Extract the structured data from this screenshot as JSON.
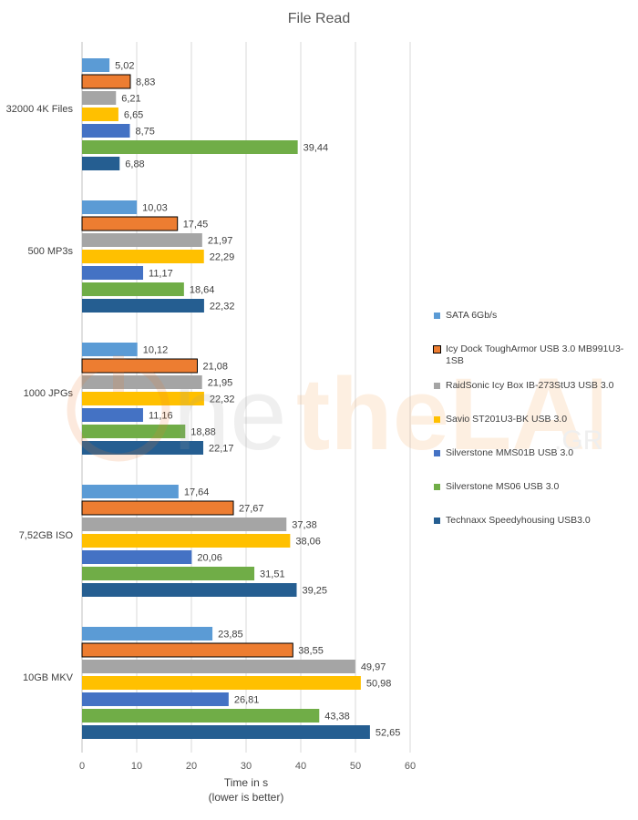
{
  "chart_data": {
    "type": "bar",
    "orientation": "horizontal",
    "title": "File Read",
    "xlabel": [
      "Time in s",
      "(lower is better)"
    ],
    "ylabel": "",
    "xlim": [
      0,
      60
    ],
    "xticks": [
      0,
      10,
      20,
      30,
      40,
      50,
      60
    ],
    "grid": true,
    "legend_position": "right",
    "categories": [
      "32000 4K Files",
      "500 MP3s",
      "1000 JPGs",
      "7,52GB ISO",
      "10GB MKV"
    ],
    "series": [
      {
        "name": "SATA 6Gb/s",
        "color": "#5B9BD5",
        "outline": false,
        "values": [
          5.02,
          10.03,
          10.12,
          17.64,
          23.85
        ],
        "labels": [
          "5,02",
          "10,03",
          "10,12",
          "17,64",
          "23,85"
        ]
      },
      {
        "name": "Icy Dock ToughArmor USB 3.0 MB991U3-1SB",
        "color": "#ED7D31",
        "outline": true,
        "values": [
          8.83,
          17.45,
          21.08,
          27.67,
          38.55
        ],
        "labels": [
          "8,83",
          "17,45",
          "21,08",
          "27,67",
          "38,55"
        ]
      },
      {
        "name": "RaidSonic Icy Box IB-273StU3 USB 3.0",
        "color": "#A5A5A5",
        "outline": false,
        "values": [
          6.21,
          21.97,
          21.95,
          37.38,
          49.97
        ],
        "labels": [
          "6,21",
          "21,97",
          "21,95",
          "37,38",
          "49,97"
        ]
      },
      {
        "name": "Savio ST201U3-BK USB 3.0",
        "color": "#FFC000",
        "outline": false,
        "values": [
          6.65,
          22.29,
          22.32,
          38.06,
          50.98
        ],
        "labels": [
          "6,65",
          "22,29",
          "22,32",
          "38,06",
          "50,98"
        ]
      },
      {
        "name": "Silverstone MMS01B USB 3.0",
        "color": "#4472C4",
        "outline": false,
        "values": [
          8.75,
          11.17,
          11.16,
          20.06,
          26.81
        ],
        "labels": [
          "8,75",
          "11,17",
          "11,16",
          "20,06",
          "26,81"
        ]
      },
      {
        "name": "Silverstone MS06 USB 3.0",
        "color": "#70AD47",
        "outline": false,
        "values": [
          39.44,
          18.64,
          18.88,
          31.51,
          43.38
        ],
        "labels": [
          "39,44",
          "18,64",
          "18,88",
          "31,51",
          "43,38"
        ]
      },
      {
        "name": "Technaxx Speedyhousing USB3.0",
        "color": "#255E91",
        "outline": false,
        "values": [
          6.88,
          22.32,
          22.17,
          39.25,
          52.65
        ],
        "labels": [
          "6,88",
          "22,32",
          "22,17",
          "39,25",
          "52,65"
        ]
      }
    ]
  },
  "legend": {
    "items": [
      {
        "label": "SATA 6Gb/s",
        "color": "#5B9BD5"
      },
      {
        "label": "Icy Dock ToughArmor USB 3.0 MB991U3-1SB",
        "color": "#ED7D31"
      },
      {
        "label": "RaidSonic Icy Box IB-273StU3 USB 3.0",
        "color": "#A5A5A5"
      },
      {
        "label": "Savio ST201U3-BK USB 3.0",
        "color": "#FFC000"
      },
      {
        "label": "Silverstone MMS01B USB 3.0",
        "color": "#4472C4"
      },
      {
        "label": "Silverstone MS06 USB 3.0",
        "color": "#70AD47"
      },
      {
        "label": "Technaxx Speedyhousing USB3.0",
        "color": "#255E91"
      }
    ]
  },
  "watermark": {
    "text": "theLAB",
    "suffix": ".GR",
    "color": "#F6B26B"
  }
}
